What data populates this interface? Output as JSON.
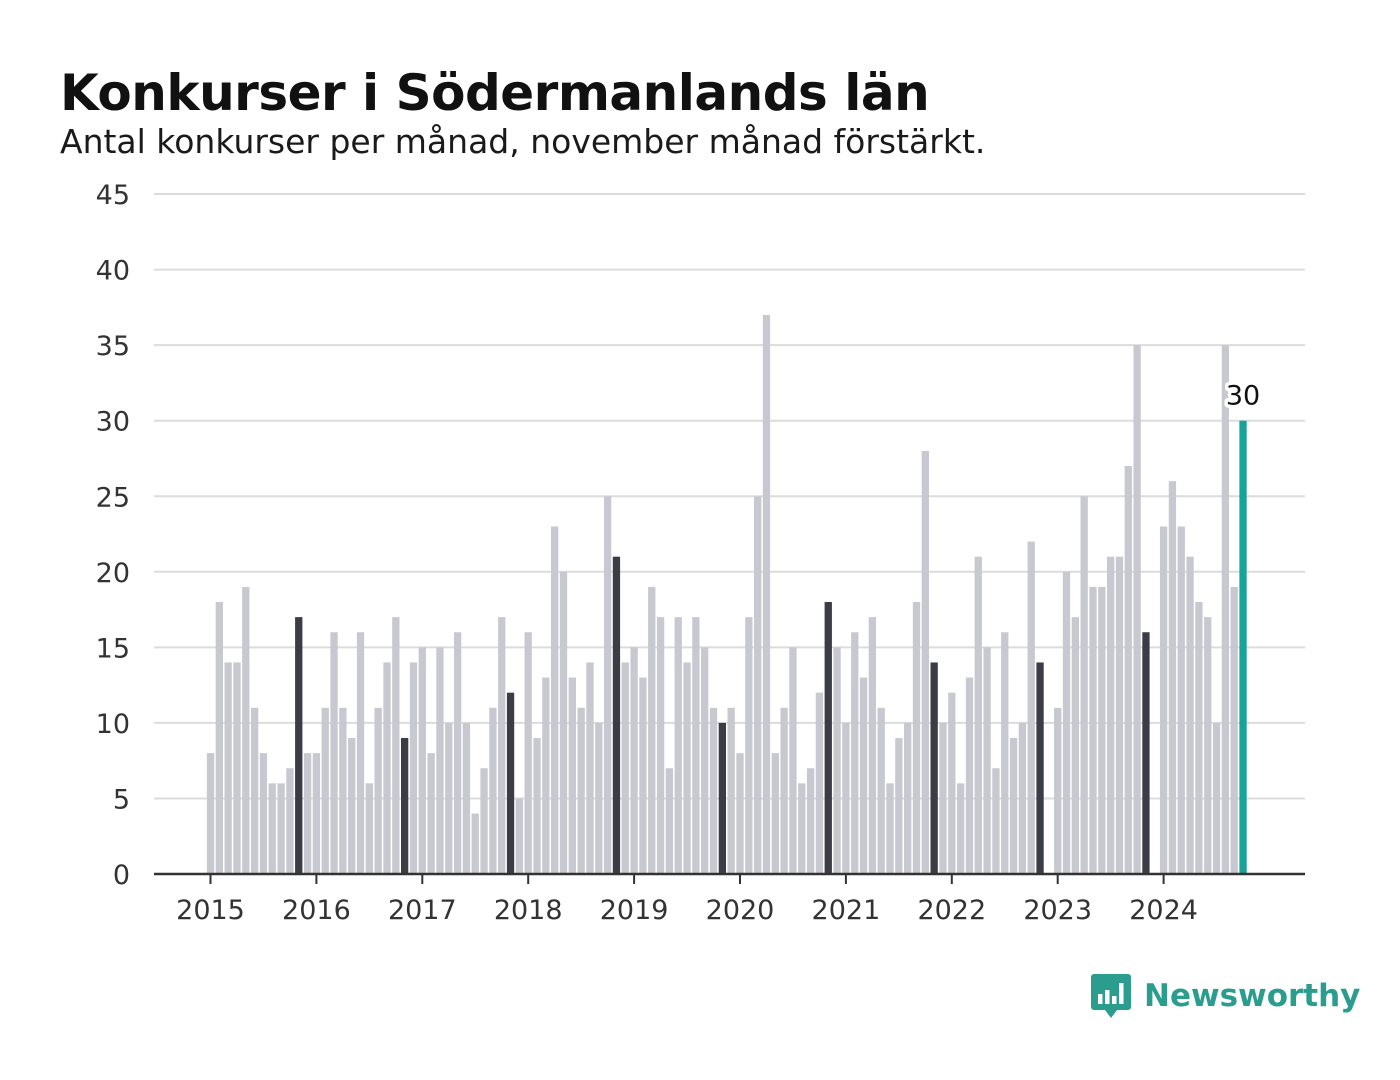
{
  "header": {
    "title": "Konkurser i Södermanlands län",
    "subtitle": "Antal konkurser per månad, november månad förstärkt."
  },
  "brand": {
    "name": "Newsworthy",
    "logo_icon": "bar-chart-speech-bubble-icon",
    "color": "#2a9d8f"
  },
  "chart_data": {
    "type": "bar",
    "title": "Konkurser i Södermanlands län",
    "subtitle": "Antal konkurser per månad, november månad förstärkt.",
    "x_start": "2015-01",
    "x_end": "2024-11",
    "year_ticks": [
      "2015",
      "2016",
      "2017",
      "2018",
      "2019",
      "2020",
      "2021",
      "2022",
      "2023",
      "2024"
    ],
    "yticks": [
      0,
      5,
      10,
      15,
      20,
      25,
      30,
      35,
      40,
      45
    ],
    "ylim": [
      0,
      45
    ],
    "grid": true,
    "highlight_month": "november",
    "colors": {
      "default": "#c8c8d0",
      "november": "#3c3c47",
      "latest": "#17a398",
      "grid": "#dcdcdc",
      "axis": "#333333"
    },
    "latest_label": "30",
    "series": [
      {
        "years": [
          "2015",
          "2016",
          "2017",
          "2018",
          "2019",
          "2020",
          "2021",
          "2022",
          "2023",
          "2024"
        ],
        "values": [
          [
            8,
            18,
            14,
            14,
            19,
            11,
            8,
            6,
            6,
            7,
            17,
            8
          ],
          [
            8,
            11,
            16,
            11,
            9,
            16,
            6,
            11,
            14,
            17,
            9,
            14
          ],
          [
            15,
            8,
            15,
            10,
            16,
            10,
            4,
            7,
            11,
            17,
            12,
            5
          ],
          [
            16,
            9,
            13,
            23,
            20,
            13,
            11,
            14,
            10,
            25,
            21,
            14
          ],
          [
            15,
            13,
            19,
            17,
            7,
            17,
            14,
            17,
            15,
            11,
            10,
            11
          ],
          [
            8,
            17,
            25,
            37,
            8,
            11,
            15,
            6,
            7,
            12,
            18,
            15
          ],
          [
            10,
            16,
            13,
            17,
            11,
            6,
            9,
            10,
            18,
            28,
            14,
            10
          ],
          [
            12,
            6,
            13,
            21,
            15,
            7,
            16,
            9,
            10,
            22,
            14,
            0
          ],
          [
            11,
            20,
            17,
            25,
            19,
            19,
            21,
            21,
            27,
            35,
            16,
            0
          ],
          [
            23,
            26,
            23,
            21,
            18,
            17,
            10,
            35,
            19,
            30
          ]
        ]
      }
    ]
  }
}
